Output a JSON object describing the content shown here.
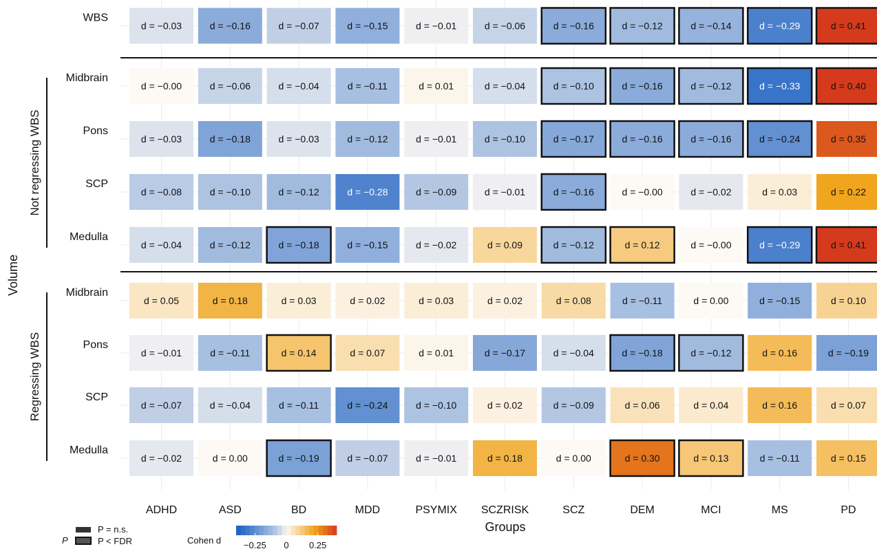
{
  "chart_data": {
    "type": "heatmap",
    "xlabel": "Groups",
    "ylabel": "Volume",
    "categories": [
      "ADHD",
      "ASD",
      "BD",
      "MDD",
      "PSYMIX",
      "SCZRISK",
      "SCZ",
      "DEM",
      "MCI",
      "MS",
      "PD"
    ],
    "sections": [
      {
        "title": "",
        "rows": [
          {
            "name": "WBS",
            "values": [
              -0.03,
              -0.16,
              -0.07,
              -0.15,
              -0.01,
              -0.06,
              -0.16,
              -0.12,
              -0.14,
              -0.29,
              0.41
            ],
            "labels": [
              "d = −0.03",
              "d = −0.16",
              "d = −0.07",
              "d = −0.15",
              "d = −0.01",
              "d = −0.06",
              "d = −0.16",
              "d = −0.12",
              "d = −0.14",
              "d = −0.29",
              "d = 0.41"
            ],
            "fdr": [
              0,
              0,
              0,
              0,
              0,
              0,
              1,
              1,
              1,
              1,
              1
            ]
          }
        ]
      },
      {
        "title": "Not regressing WBS",
        "rows": [
          {
            "name": "Midbrain",
            "values": [
              0.0,
              -0.06,
              -0.04,
              -0.11,
              0.01,
              -0.04,
              -0.1,
              -0.16,
              -0.12,
              -0.33,
              0.4
            ],
            "labels": [
              "d = −0.00",
              "d = −0.06",
              "d = −0.04",
              "d = −0.11",
              "d = 0.01",
              "d = −0.04",
              "d = −0.10",
              "d = −0.16",
              "d = −0.12",
              "d = −0.33",
              "d = 0.40"
            ],
            "fdr": [
              0,
              0,
              0,
              0,
              0,
              0,
              1,
              1,
              1,
              1,
              1
            ]
          },
          {
            "name": "Pons",
            "values": [
              -0.03,
              -0.18,
              -0.03,
              -0.12,
              -0.01,
              -0.1,
              -0.17,
              -0.16,
              -0.16,
              -0.24,
              0.35
            ],
            "labels": [
              "d = −0.03",
              "d = −0.18",
              "d = −0.03",
              "d = −0.12",
              "d = −0.01",
              "d = −0.10",
              "d = −0.17",
              "d = −0.16",
              "d = −0.16",
              "d = −0.24",
              "d = 0.35"
            ],
            "fdr": [
              0,
              0,
              0,
              0,
              0,
              0,
              1,
              1,
              1,
              1,
              0
            ]
          },
          {
            "name": "SCP",
            "values": [
              -0.08,
              -0.1,
              -0.12,
              -0.28,
              -0.09,
              -0.01,
              -0.16,
              0.0,
              -0.02,
              0.03,
              0.22
            ],
            "labels": [
              "d = −0.08",
              "d = −0.10",
              "d = −0.12",
              "d = −0.28",
              "d = −0.09",
              "d = −0.01",
              "d = −0.16",
              "d = −0.00",
              "d = −0.02",
              "d = 0.03",
              "d = 0.22"
            ],
            "fdr": [
              0,
              0,
              0,
              0,
              0,
              0,
              1,
              0,
              0,
              0,
              0
            ]
          },
          {
            "name": "Medulla",
            "values": [
              -0.04,
              -0.12,
              -0.18,
              -0.15,
              -0.02,
              0.09,
              -0.12,
              0.12,
              0.0,
              -0.29,
              0.41
            ],
            "labels": [
              "d = −0.04",
              "d = −0.12",
              "d = −0.18",
              "d = −0.15",
              "d = −0.02",
              "d = 0.09",
              "d = −0.12",
              "d = 0.12",
              "d = −0.00",
              "d = −0.29",
              "d = 0.41"
            ],
            "fdr": [
              0,
              0,
              1,
              0,
              0,
              0,
              1,
              1,
              0,
              1,
              1
            ]
          }
        ]
      },
      {
        "title": "Regressing WBS",
        "rows": [
          {
            "name": "Midbrain",
            "values": [
              0.05,
              0.18,
              0.03,
              0.02,
              0.03,
              0.02,
              0.08,
              -0.11,
              0.0,
              -0.15,
              0.1
            ],
            "labels": [
              "d = 0.05",
              "d = 0.18",
              "d = 0.03",
              "d = 0.02",
              "d = 0.03",
              "d = 0.02",
              "d = 0.08",
              "d = −0.11",
              "d = 0.00",
              "d = −0.15",
              "d = 0.10"
            ],
            "fdr": [
              0,
              0,
              0,
              0,
              0,
              0,
              0,
              0,
              0,
              0,
              0
            ]
          },
          {
            "name": "Pons",
            "values": [
              -0.01,
              -0.11,
              0.14,
              0.07,
              0.01,
              -0.17,
              -0.04,
              -0.18,
              -0.12,
              0.16,
              -0.19
            ],
            "labels": [
              "d = −0.01",
              "d = −0.11",
              "d = 0.14",
              "d = 0.07",
              "d = 0.01",
              "d = −0.17",
              "d = −0.04",
              "d = −0.18",
              "d = −0.12",
              "d = 0.16",
              "d = −0.19"
            ],
            "fdr": [
              0,
              0,
              1,
              0,
              0,
              0,
              0,
              1,
              1,
              0,
              0
            ]
          },
          {
            "name": "SCP",
            "values": [
              -0.07,
              -0.04,
              -0.11,
              -0.24,
              -0.1,
              0.02,
              -0.09,
              0.06,
              0.04,
              0.16,
              0.07
            ],
            "labels": [
              "d = −0.07",
              "d = −0.04",
              "d = −0.11",
              "d = −0.24",
              "d = −0.10",
              "d = 0.02",
              "d = −0.09",
              "d = 0.06",
              "d = 0.04",
              "d = 0.16",
              "d = 0.07"
            ],
            "fdr": [
              0,
              0,
              0,
              0,
              0,
              0,
              0,
              0,
              0,
              0,
              0
            ]
          },
          {
            "name": "Medulla",
            "values": [
              -0.02,
              0.0,
              -0.19,
              -0.07,
              -0.01,
              0.18,
              0.0,
              0.3,
              0.13,
              -0.11,
              0.15
            ],
            "labels": [
              "d = −0.02",
              "d = 0.00",
              "d = −0.19",
              "d = −0.07",
              "d = −0.01",
              "d = 0.18",
              "d = 0.00",
              "d = 0.30",
              "d = 0.13",
              "d = −0.11",
              "d = 0.15"
            ],
            "fdr": [
              0,
              0,
              1,
              0,
              0,
              0,
              0,
              1,
              1,
              0,
              0
            ]
          }
        ]
      }
    ],
    "color_scale": {
      "min": -0.4,
      "max": 0.4,
      "negative": "#1a5fc1",
      "neutral": "#fdf9f4",
      "positive": "#d63a1c"
    },
    "legend": {
      "p_title": "P",
      "p_ns": "P = n.s.",
      "p_fdr": "P < FDR",
      "color_title": "Cohen d",
      "color_ticks": [
        "−0.25",
        "0",
        "0.25"
      ],
      "color_tick_values": [
        -0.25,
        0,
        0.25
      ]
    }
  }
}
